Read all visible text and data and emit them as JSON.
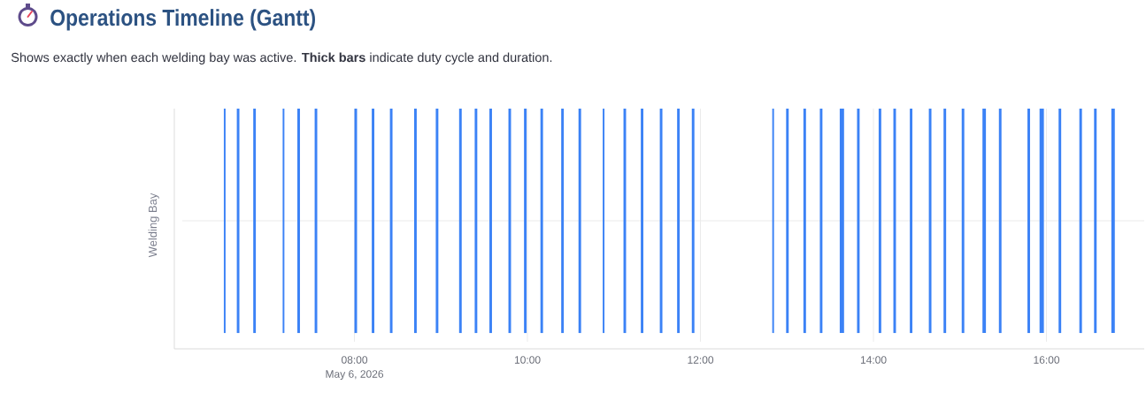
{
  "chart_data": {
    "type": "bar",
    "orientation": "horizontal",
    "title": "Operations Timeline (Gantt)",
    "subtitle": "Shows exactly when each welding bay was active. **Thick bars** indicate duty cycle and duration.",
    "ylabel": "Welding Bay",
    "annotations": [
      "May 6, 2026"
    ],
    "categories": [
      null
    ],
    "xlim": [
      6.01,
      17.13
    ],
    "xticks": [
      {
        "value": 8,
        "label": "08:00"
      },
      {
        "value": 10,
        "label": "10:00"
      },
      {
        "value": 12,
        "label": "12:00"
      },
      {
        "value": 14,
        "label": "14:00"
      },
      {
        "value": 16,
        "label": "16:00"
      }
    ],
    "grid": true,
    "series": [
      {
        "color": "#3b82f6",
        "base": [
          6.49
        ],
        "values": [
          0.02
        ]
      },
      {
        "color": "#3b82f6",
        "base": [
          6.64
        ],
        "values": [
          0.03
        ]
      },
      {
        "color": "#3b82f6",
        "base": [
          6.83
        ],
        "values": [
          0.03
        ]
      },
      {
        "color": "#3b82f6",
        "base": [
          7.17
        ],
        "values": [
          0.02
        ]
      },
      {
        "color": "#3b82f6",
        "base": [
          7.34
        ],
        "values": [
          0.03
        ]
      },
      {
        "color": "#3b82f6",
        "base": [
          7.54
        ],
        "values": [
          0.03
        ]
      },
      {
        "color": "#3b82f6",
        "base": [
          8.0
        ],
        "values": [
          0.03
        ]
      },
      {
        "color": "#3b82f6",
        "base": [
          8.2
        ],
        "values": [
          0.03
        ]
      },
      {
        "color": "#3b82f6",
        "base": [
          8.41
        ],
        "values": [
          0.03
        ]
      },
      {
        "color": "#3b82f6",
        "base": [
          8.69
        ],
        "values": [
          0.03
        ]
      },
      {
        "color": "#3b82f6",
        "base": [
          8.94
        ],
        "values": [
          0.03
        ]
      },
      {
        "color": "#3b82f6",
        "base": [
          9.21
        ],
        "values": [
          0.03
        ]
      },
      {
        "color": "#3b82f6",
        "base": [
          9.39
        ],
        "values": [
          0.03
        ]
      },
      {
        "color": "#3b82f6",
        "base": [
          9.56
        ],
        "values": [
          0.03
        ]
      },
      {
        "color": "#3b82f6",
        "base": [
          9.78
        ],
        "values": [
          0.03
        ]
      },
      {
        "color": "#3b82f6",
        "base": [
          9.96
        ],
        "values": [
          0.03
        ]
      },
      {
        "color": "#3b82f6",
        "base": [
          10.15
        ],
        "values": [
          0.03
        ]
      },
      {
        "color": "#3b82f6",
        "base": [
          10.39
        ],
        "values": [
          0.03
        ]
      },
      {
        "color": "#3b82f6",
        "base": [
          10.59
        ],
        "values": [
          0.03
        ]
      },
      {
        "color": "#3b82f6",
        "base": [
          10.87
        ],
        "values": [
          0.02
        ]
      },
      {
        "color": "#3b82f6",
        "base": [
          11.11
        ],
        "values": [
          0.03
        ]
      },
      {
        "color": "#3b82f6",
        "base": [
          11.31
        ],
        "values": [
          0.03
        ]
      },
      {
        "color": "#3b82f6",
        "base": [
          11.53
        ],
        "values": [
          0.03
        ]
      },
      {
        "color": "#3b82f6",
        "base": [
          11.73
        ],
        "values": [
          0.03
        ]
      },
      {
        "color": "#3b82f6",
        "base": [
          11.9
        ],
        "values": [
          0.03
        ]
      },
      {
        "color": "#3b82f6",
        "base": [
          12.83
        ],
        "values": [
          0.02
        ]
      },
      {
        "color": "#3b82f6",
        "base": [
          12.99
        ],
        "values": [
          0.03
        ]
      },
      {
        "color": "#3b82f6",
        "base": [
          13.19
        ],
        "values": [
          0.03
        ]
      },
      {
        "color": "#3b82f6",
        "base": [
          13.38
        ],
        "values": [
          0.03
        ]
      },
      {
        "color": "#3b82f6",
        "base": [
          13.61
        ],
        "values": [
          0.05
        ]
      },
      {
        "color": "#3b82f6",
        "base": [
          13.81
        ],
        "values": [
          0.03
        ]
      },
      {
        "color": "#3b82f6",
        "base": [
          14.06
        ],
        "values": [
          0.03
        ]
      },
      {
        "color": "#3b82f6",
        "base": [
          14.23
        ],
        "values": [
          0.03
        ]
      },
      {
        "color": "#3b82f6",
        "base": [
          14.42
        ],
        "values": [
          0.03
        ]
      },
      {
        "color": "#3b82f6",
        "base": [
          14.64
        ],
        "values": [
          0.03
        ]
      },
      {
        "color": "#3b82f6",
        "base": [
          14.81
        ],
        "values": [
          0.03
        ]
      },
      {
        "color": "#3b82f6",
        "base": [
          15.02
        ],
        "values": [
          0.03
        ]
      },
      {
        "color": "#3b82f6",
        "base": [
          15.26
        ],
        "values": [
          0.04
        ]
      },
      {
        "color": "#3b82f6",
        "base": [
          15.45
        ],
        "values": [
          0.03
        ]
      },
      {
        "color": "#3b82f6",
        "base": [
          15.78
        ],
        "values": [
          0.03
        ]
      },
      {
        "color": "#3b82f6",
        "base": [
          15.92
        ],
        "values": [
          0.05
        ]
      },
      {
        "color": "#3b82f6",
        "base": [
          16.14
        ],
        "values": [
          0.03
        ]
      },
      {
        "color": "#3b82f6",
        "base": [
          16.38
        ],
        "values": [
          0.03
        ]
      },
      {
        "color": "#3b82f6",
        "base": [
          16.55
        ],
        "values": [
          0.03
        ]
      },
      {
        "color": "#3b82f6",
        "base": [
          16.75
        ],
        "values": [
          0.04
        ]
      }
    ]
  }
}
